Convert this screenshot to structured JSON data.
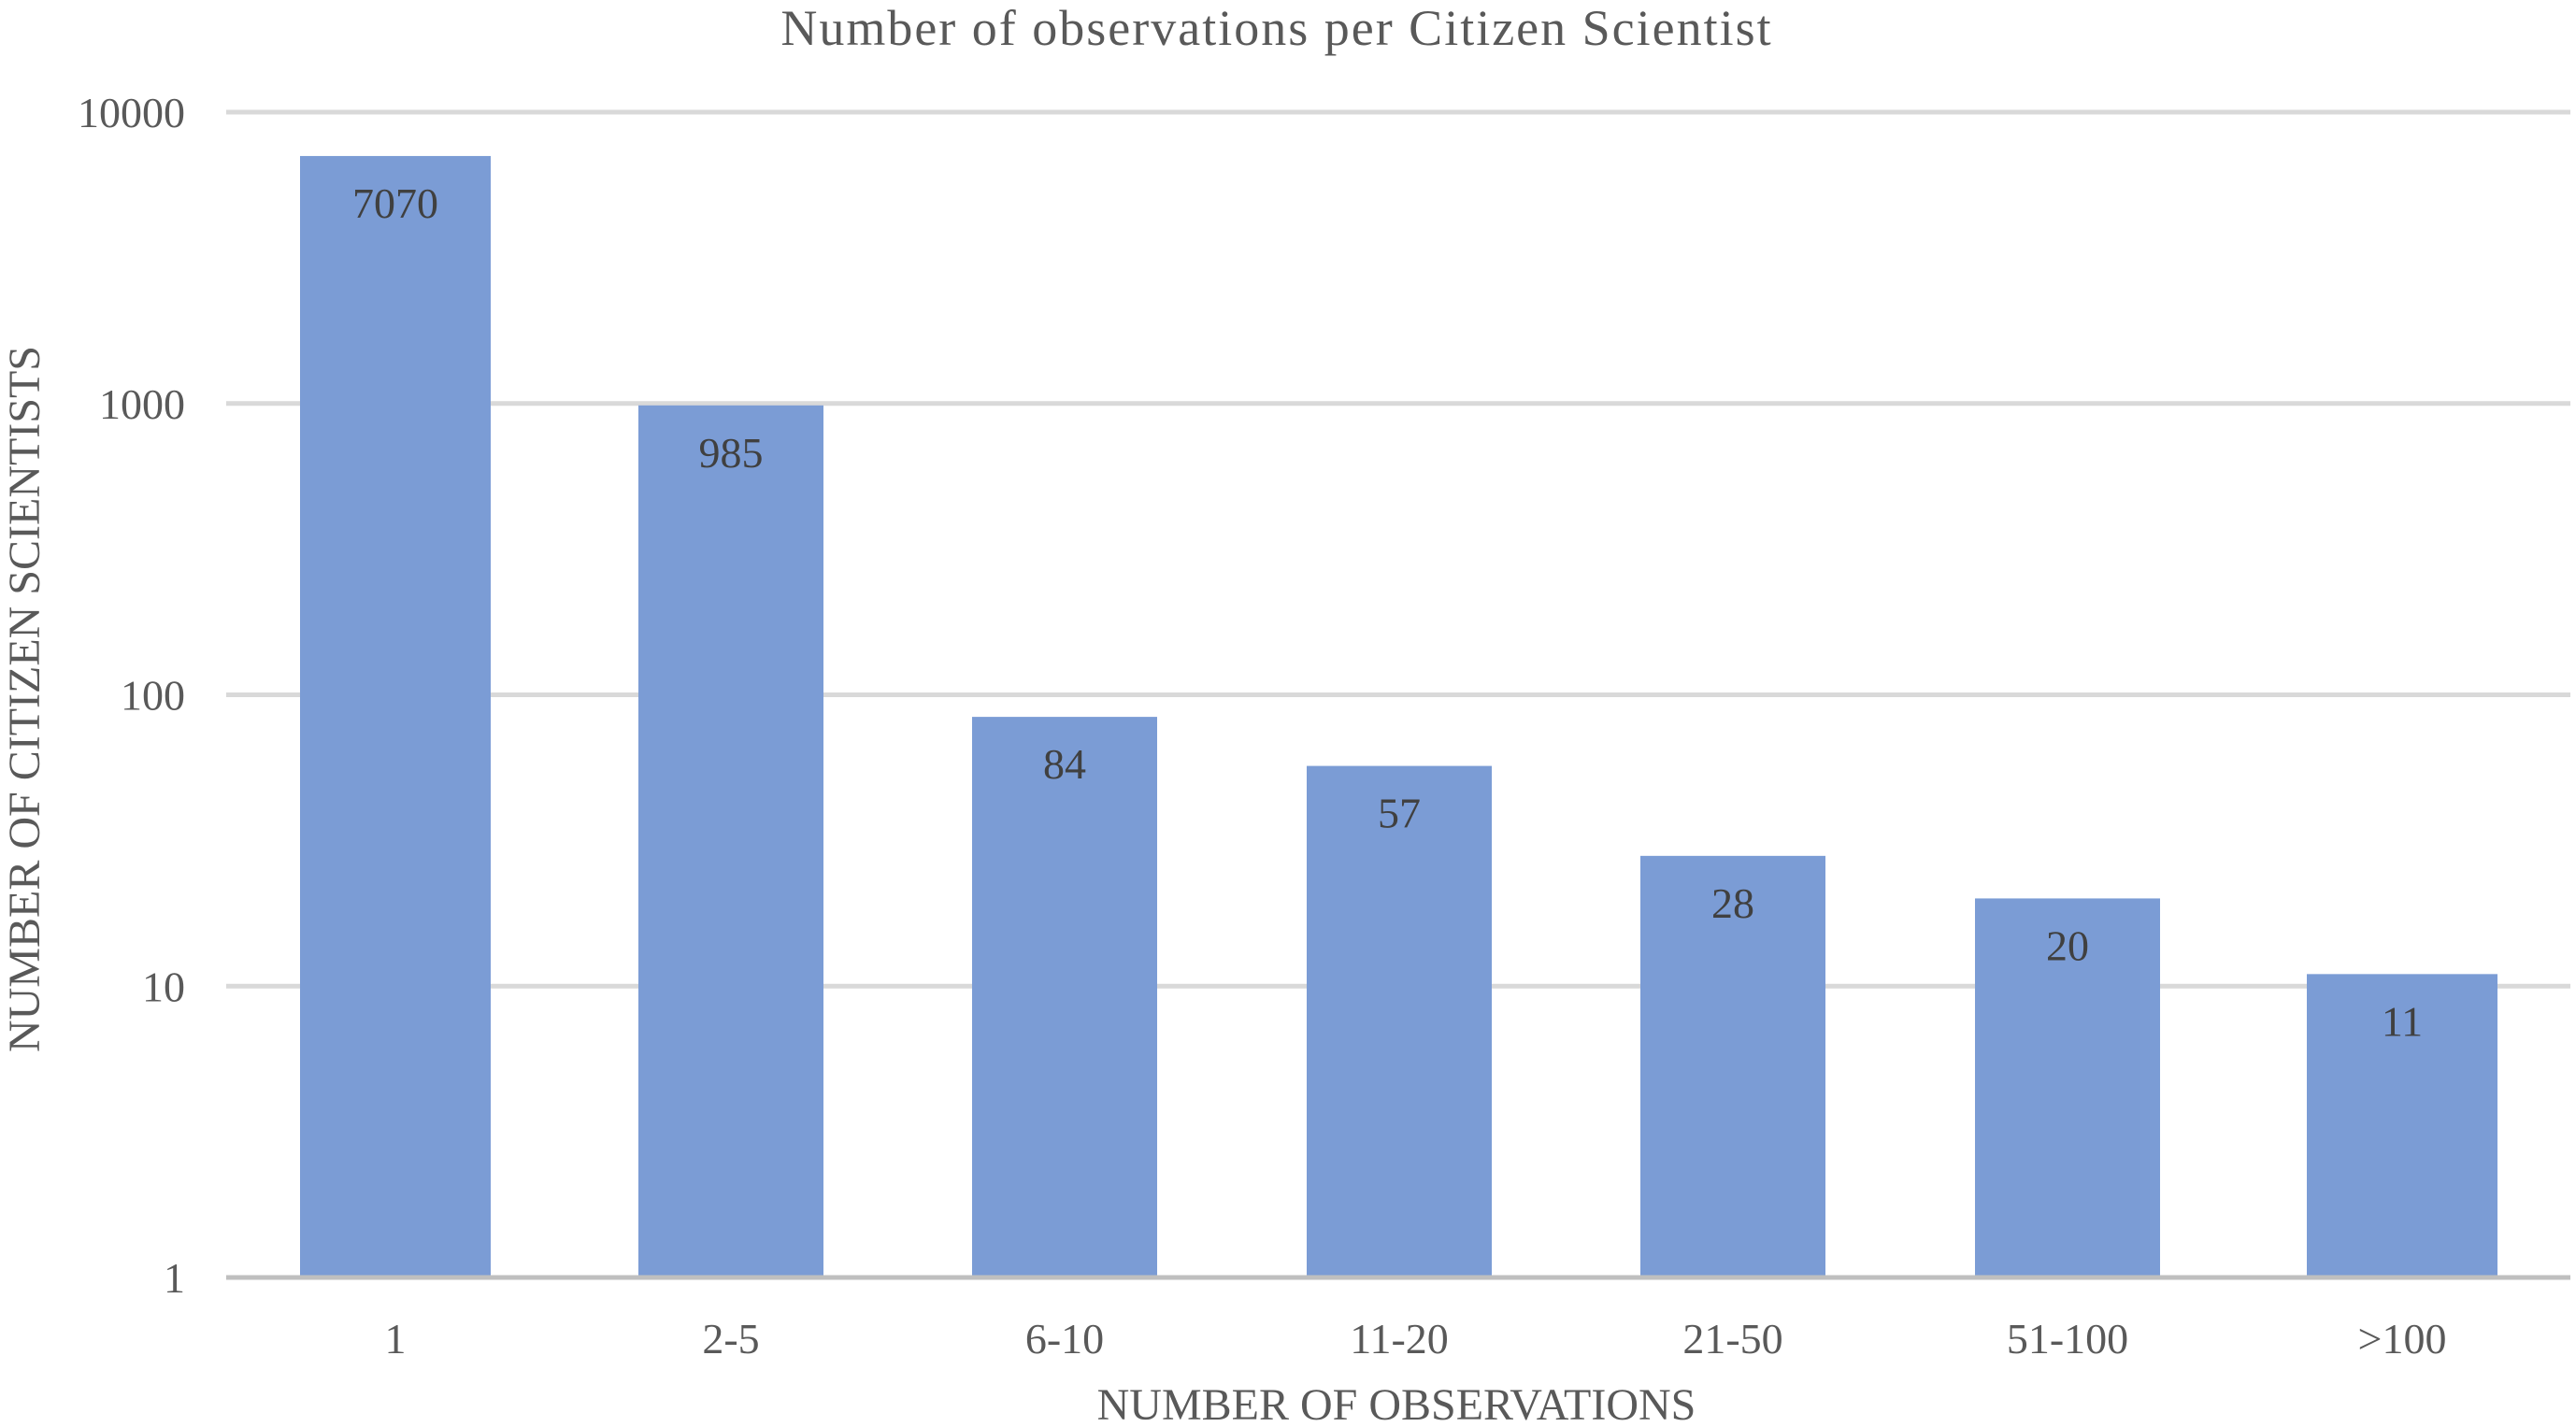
{
  "chart_data": {
    "type": "bar",
    "title": "Number of observations per Citizen Scientist",
    "xlabel": "NUMBER OF OBSERVATIONS",
    "ylabel": "NUMBER OF CITIZEN SCIENTISTS",
    "categories": [
      "1",
      "2-5",
      "6-10",
      "11-20",
      "21-50",
      "51-100",
      ">100"
    ],
    "values": [
      7070,
      985,
      84,
      57,
      28,
      20,
      11
    ],
    "data_labels": [
      "7070",
      "985",
      "84",
      "57",
      "28",
      "20",
      "11"
    ],
    "yscale": "log",
    "ylim": [
      1,
      10000
    ],
    "yticks": [
      1,
      10,
      100,
      1000,
      10000
    ],
    "ytick_labels": [
      "1",
      "10",
      "100",
      "1000",
      "10000"
    ],
    "grid": true,
    "legend": "none",
    "bar_color": "#7b9cd5"
  }
}
